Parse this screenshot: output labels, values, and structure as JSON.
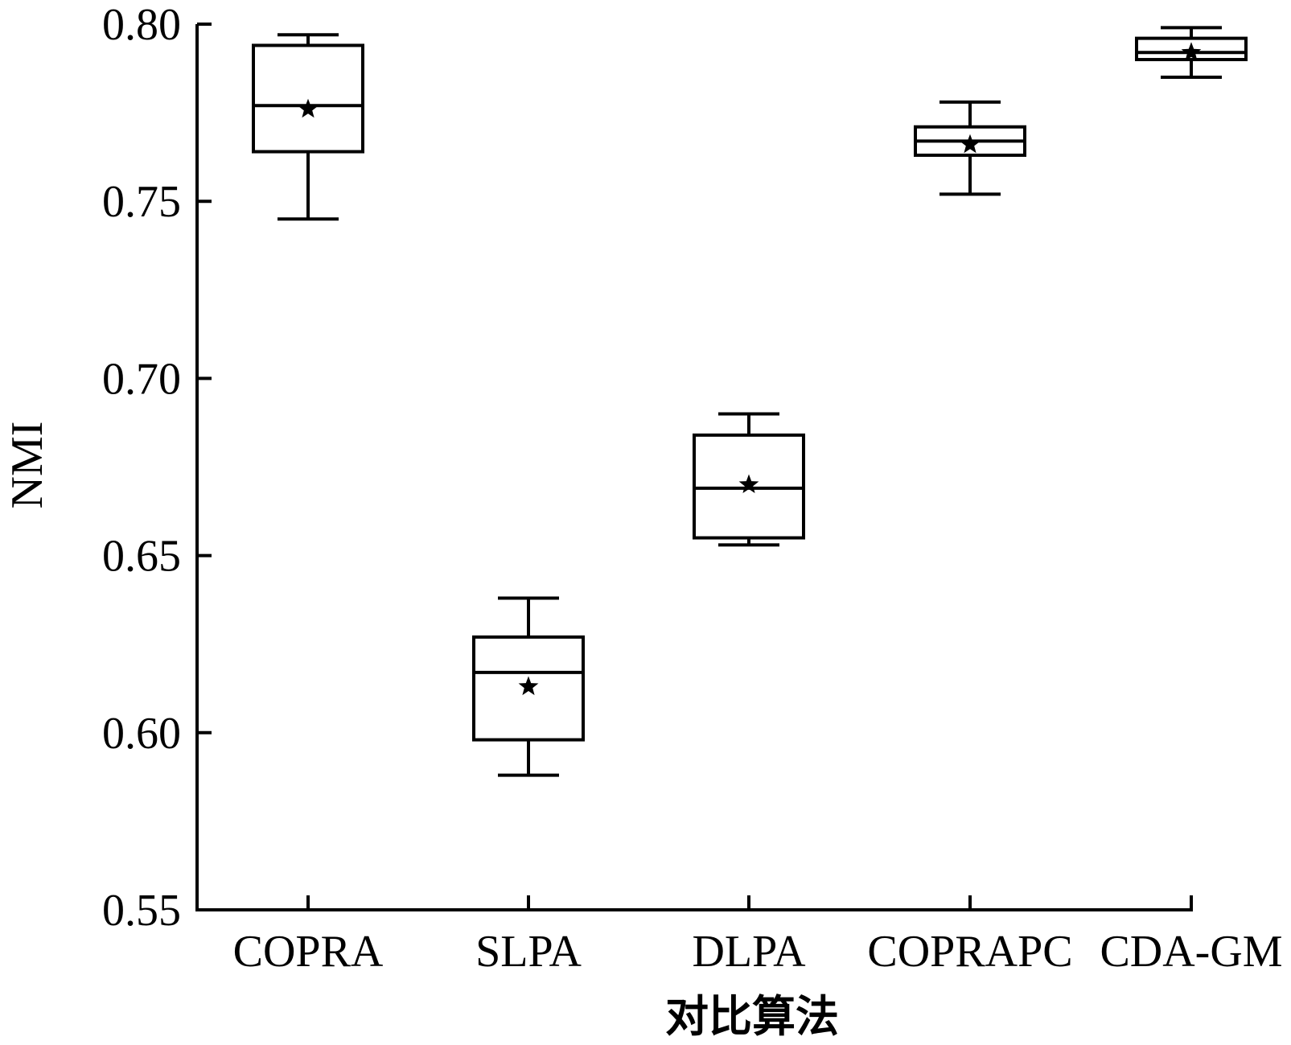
{
  "chart_data": {
    "type": "box",
    "title": "",
    "xlabel": "对比算法",
    "ylabel": "NMI",
    "ylim": [
      0.55,
      0.8
    ],
    "yticks": [
      "0.55",
      "0.60",
      "0.65",
      "0.70",
      "0.75",
      "0.80"
    ],
    "grid": false,
    "legend": "none",
    "mean_marker": "star",
    "categories": [
      "COPRA",
      "SLPA",
      "DLPA",
      "COPRAPC",
      "CDA-GM"
    ],
    "boxes": [
      {
        "name": "COPRA",
        "min": 0.745,
        "q1": 0.764,
        "median": 0.777,
        "q3": 0.794,
        "max": 0.797,
        "mean": 0.776
      },
      {
        "name": "SLPA",
        "min": 0.588,
        "q1": 0.598,
        "median": 0.617,
        "q3": 0.627,
        "max": 0.638,
        "mean": 0.613
      },
      {
        "name": "DLPA",
        "min": 0.653,
        "q1": 0.655,
        "median": 0.669,
        "q3": 0.684,
        "max": 0.69,
        "mean": 0.67
      },
      {
        "name": "COPRAPC",
        "min": 0.752,
        "q1": 0.763,
        "median": 0.767,
        "q3": 0.771,
        "max": 0.778,
        "mean": 0.766
      },
      {
        "name": "CDA-GM",
        "min": 0.785,
        "q1": 0.79,
        "median": 0.792,
        "q3": 0.796,
        "max": 0.799,
        "mean": 0.792
      }
    ],
    "colors": {
      "line": "#000000",
      "background": "#ffffff"
    }
  }
}
